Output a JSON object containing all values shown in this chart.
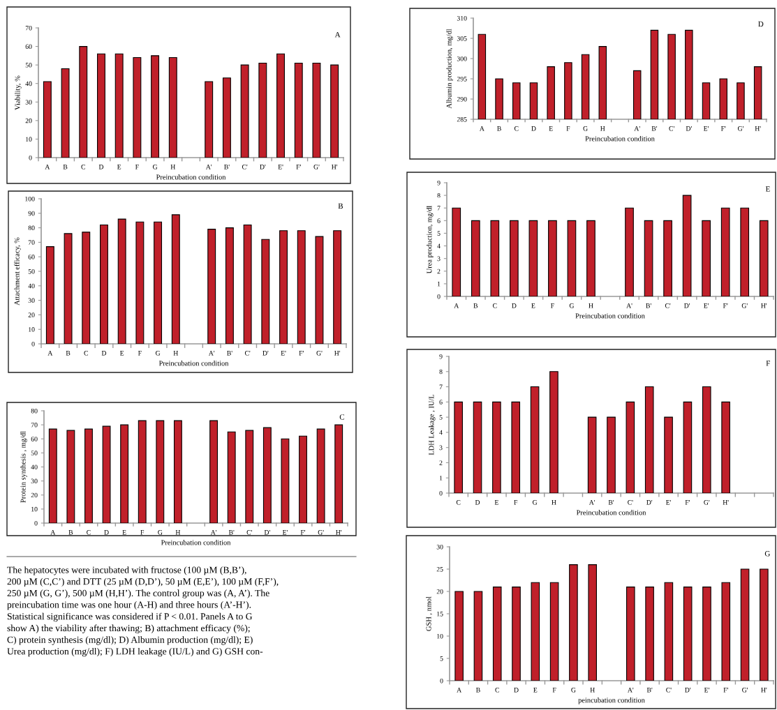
{
  "chart_data": [
    {
      "type": "bar",
      "annotations": [
        "A"
      ],
      "xlabel": "Preincubation condition",
      "ylabel": "Viability, %",
      "color": "#c0202a",
      "grid": false,
      "legend": false,
      "categories": [
        "A",
        "B",
        "C",
        "D",
        "E",
        "F",
        "G",
        "H",
        null,
        "A'",
        "B'",
        "C'",
        "D'",
        "E'",
        "F'",
        "G'",
        "H'"
      ],
      "values": [
        41,
        48,
        60,
        56,
        56,
        54,
        55,
        54,
        null,
        41,
        43,
        50,
        51,
        56,
        51,
        51,
        50
      ],
      "ylim": [
        0,
        70
      ],
      "yticks": [
        0,
        10,
        20,
        30,
        40,
        50,
        60,
        70
      ]
    },
    {
      "type": "bar",
      "annotations": [
        "B"
      ],
      "xlabel": "Preincubation condition",
      "ylabel": "Attachment efficacy, %",
      "color": "#c0202a",
      "grid": false,
      "legend": false,
      "categories": [
        "A",
        "B",
        "C",
        "D",
        "E",
        "F",
        "G",
        "H",
        null,
        "A'",
        "B'",
        "C'",
        "D'",
        "E'",
        "F'",
        "G'",
        "H'"
      ],
      "values": [
        67,
        76,
        77,
        82,
        86,
        84,
        84,
        89,
        null,
        79,
        80,
        82,
        72,
        78,
        78,
        74,
        78
      ],
      "ylim": [
        0,
        100
      ],
      "yticks": [
        0,
        10,
        20,
        30,
        40,
        50,
        60,
        70,
        80,
        90,
        100
      ]
    },
    {
      "type": "bar",
      "annotations": [
        "C"
      ],
      "xlabel": "Preincubation condition",
      "ylabel": "Protein synthesis , mg/dl",
      "color": "#c0202a",
      "grid": false,
      "legend": false,
      "categories": [
        "A",
        "B",
        "C",
        "D",
        "E",
        "F",
        "G",
        "H",
        null,
        "A'",
        "B'",
        "C'",
        "D'",
        "E'",
        "F'",
        "G'",
        "H'"
      ],
      "values": [
        67,
        66,
        67,
        69,
        70,
        73,
        73,
        73,
        null,
        73,
        65,
        66,
        68,
        60,
        62,
        67,
        70
      ],
      "ylim": [
        0,
        80
      ],
      "yticks": [
        0,
        10,
        20,
        30,
        40,
        50,
        60,
        70,
        80
      ]
    },
    {
      "type": "other",
      "annotations": [
        "The hepatocytes were incubated with fructose (100 µM (B,B’),\n200 µM (C,C’) and DTT (25 µM (D,D’), 50 µM (E,E’), 100 µM (F,F’),\n250 µM (G, G’), 500 µM (H,H’). The control group was (A, A’). The\npreincubation time was one hour (A-H) and three hours (A’-H’).\nStatistical significance was considered if P < 0.01. Panels A to G\nshow A) the viability after thawing; B) attachment efficacy (%);\nC) protein synthesis (mg/dl); D) Albumin production (mg/dl); E)\nUrea production (mg/dl); F) LDH leakage (IU/L) and G) GSH con-"
      ]
    },
    {
      "type": "bar",
      "annotations": [
        "D"
      ],
      "xlabel": "Preincubation condition",
      "ylabel": "Albumin production, mg/dl",
      "color": "#c0202a",
      "grid": false,
      "legend": false,
      "categories": [
        "A",
        "B",
        "C",
        "D",
        "E",
        "F",
        "G",
        "H",
        null,
        "A'",
        "B'",
        "C'",
        "D'",
        "E'",
        "F'",
        "G'",
        "H'"
      ],
      "values": [
        306,
        295,
        294,
        294,
        298,
        299,
        301,
        303,
        null,
        297,
        307,
        306,
        307,
        294,
        295,
        294,
        298
      ],
      "ylim": [
        285,
        310
      ],
      "yticks": [
        285,
        290,
        295,
        300,
        305,
        310
      ]
    },
    {
      "type": "bar",
      "annotations": [
        "E"
      ],
      "xlabel": "Preincubation condition",
      "ylabel": "Urea production, mg/dl",
      "color": "#c0202a",
      "grid": false,
      "legend": false,
      "categories": [
        "A",
        "B",
        "C",
        "D",
        "E",
        "F",
        "G",
        "H",
        null,
        "A'",
        "B'",
        "C'",
        "D'",
        "E'",
        "F'",
        "G'",
        "H'"
      ],
      "values": [
        7,
        6,
        6,
        6,
        6,
        6,
        6,
        6,
        null,
        7,
        6,
        6,
        8,
        6,
        7,
        7,
        6
      ],
      "ylim": [
        0,
        9
      ],
      "yticks": [
        0,
        1,
        2,
        3,
        4,
        5,
        6,
        7,
        8,
        9
      ]
    },
    {
      "type": "bar",
      "annotations": [
        "F"
      ],
      "xlabel": "Preincubation condition",
      "ylabel": "LDH Leakage , IU/L",
      "color": "#c0202a",
      "grid": false,
      "legend": false,
      "categories": [
        "C",
        "D",
        "E",
        "F",
        "G",
        "H",
        null,
        "A'",
        "B'",
        "C'",
        "D'",
        "E'",
        "F'",
        "G'",
        "H'",
        null,
        null
      ],
      "values": [
        6,
        6,
        6,
        6,
        7,
        8,
        null,
        5,
        5,
        6,
        7,
        5,
        6,
        7,
        6,
        null,
        null
      ],
      "ylim": [
        0,
        9
      ],
      "yticks": [
        0,
        1,
        2,
        3,
        4,
        5,
        6,
        7,
        8,
        9
      ]
    },
    {
      "type": "bar",
      "annotations": [
        "G"
      ],
      "xlabel": "peincubation condition",
      "ylabel": "GSH , nmol",
      "color": "#c0202a",
      "grid": false,
      "legend": false,
      "categories": [
        "A",
        "B",
        "C",
        "D",
        "E",
        "F",
        "G",
        "H",
        null,
        "A'",
        "B'",
        "C'",
        "D'",
        "E'",
        "F'",
        "G'",
        "H'"
      ],
      "values": [
        20,
        20,
        21,
        21,
        22,
        22,
        26,
        26,
        null,
        21,
        21,
        22,
        21,
        21,
        22,
        25,
        25
      ],
      "ylim": [
        0,
        30
      ],
      "yticks": [
        0,
        5,
        10,
        15,
        20,
        25,
        30
      ]
    }
  ]
}
